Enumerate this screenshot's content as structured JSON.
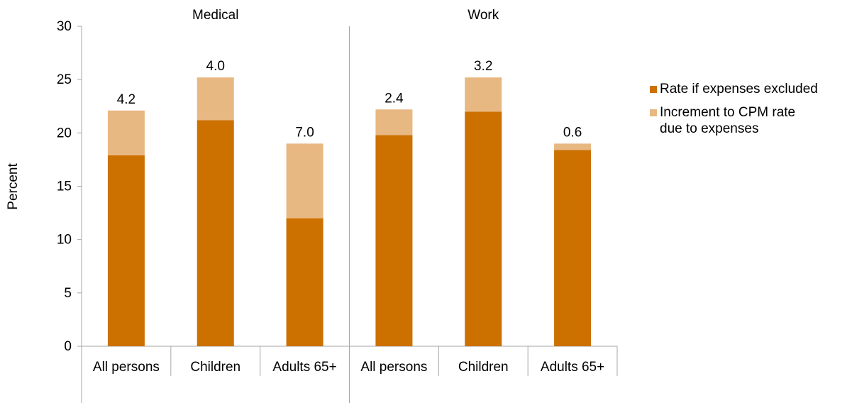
{
  "chart_data": {
    "type": "bar",
    "stacked": true,
    "ylabel": "Percent",
    "ylim": [
      0,
      30
    ],
    "yticks": [
      "0",
      "5",
      "10",
      "15",
      "20",
      "25",
      "30"
    ],
    "groups": [
      "Medical",
      "Work"
    ],
    "categories": [
      "All persons",
      "Children",
      "Adults 65+",
      "All persons",
      "Children",
      "Adults 65+"
    ],
    "group_of_category": [
      0,
      0,
      0,
      1,
      1,
      1
    ],
    "series": [
      {
        "name": "Rate if expenses excluded",
        "color": "#cc7000",
        "values": [
          17.9,
          21.2,
          12.0,
          19.8,
          22.0,
          18.4
        ]
      },
      {
        "name": "Increment to CPM rate due to expenses",
        "color": "#e8b882",
        "values": [
          4.2,
          4.0,
          7.0,
          2.4,
          3.2,
          0.6
        ]
      }
    ],
    "data_labels": [
      "4.2",
      "4.0",
      "7.0",
      "2.4",
      "3.2",
      "0.6"
    ],
    "legend_position": "right",
    "grid": false
  }
}
